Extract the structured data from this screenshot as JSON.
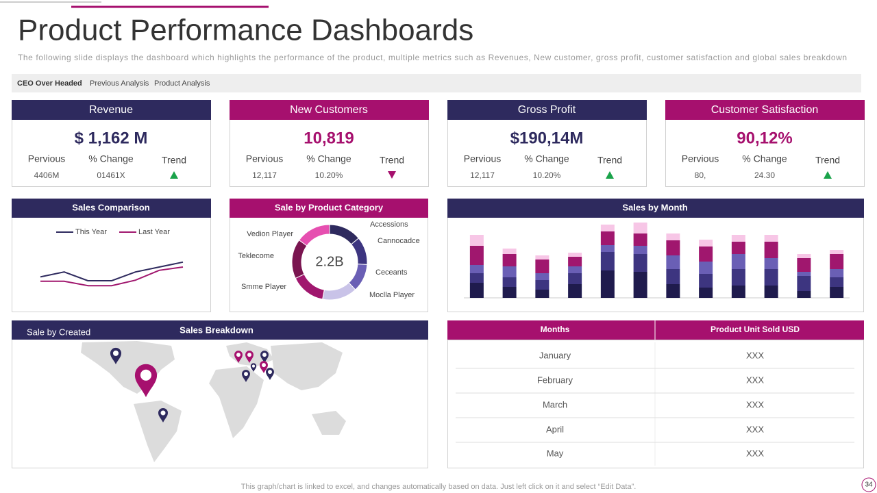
{
  "header": {
    "title": "Product Performance Dashboards",
    "subtitle": "The following slide displays the dashboard which highlights the  performance  of the product, multiple metrics such as Revenues,  New customer, gross profit, customer satisfaction and global sales breakdown"
  },
  "tabs": [
    "CEO Over Headed",
    "Previous Analysis",
    "Product Analysis"
  ],
  "kpis": [
    {
      "title": "Revenue",
      "color": "#2e2a5e",
      "value": "$ 1,162 M",
      "labels": [
        "Pervious",
        "% Change",
        "Trend"
      ],
      "previous": "4406M",
      "change": "01461X",
      "trend": "up"
    },
    {
      "title": "New Customers",
      "color": "#a6106e",
      "value": "10,819",
      "labels": [
        "Pervious",
        "% Change",
        "Trend"
      ],
      "previous": "12,117",
      "change": "10.20%",
      "trend": "down"
    },
    {
      "title": "Gross  Profit",
      "color": "#2e2a5e",
      "value": "$190,14M",
      "labels": [
        "Pervious",
        "% Change",
        "Trend"
      ],
      "previous": "12,117",
      "change": "10.20%",
      "trend": "up"
    },
    {
      "title": "Customer Satisfaction",
      "color": "#a6106e",
      "value": "90,12%",
      "labels": [
        "Pervious",
        "% Change",
        "Trend"
      ],
      "previous": "80,",
      "change": "24.30",
      "trend": "up"
    }
  ],
  "sales_comparison": {
    "type": "line",
    "title": "Sales Comparison",
    "ylim": [
      0,
      10
    ],
    "series": [
      {
        "name": "This Year",
        "color": "#2e2a5e",
        "values": [
          3.2,
          4.1,
          2.5,
          2.5,
          4.1,
          5.0,
          5.9
        ]
      },
      {
        "name": "Last Year",
        "color": "#a0176e",
        "values": [
          2.4,
          2.4,
          1.6,
          1.6,
          2.6,
          4.4,
          5.0
        ]
      }
    ]
  },
  "product_category": {
    "type": "pie",
    "title": "Sale by Product Category",
    "center_label": "2.2B",
    "categories": [
      "Accessions",
      "Cannocadce",
      "Ceceants",
      "Moclla Player",
      "Smme Player",
      "Teklecome",
      "Vedion Player"
    ],
    "values": [
      14,
      12,
      12,
      15,
      15,
      17,
      15
    ],
    "colors": [
      "#2e2a5e",
      "#3d3580",
      "#6a5fb5",
      "#c9c3e8",
      "#a0176e",
      "#7a1550",
      "#e64fb0"
    ]
  },
  "sales_by_month": {
    "type": "bar",
    "title": "Sales by Month",
    "ylim": [
      0,
      110
    ],
    "series": [
      {
        "color": "#1f1b4d",
        "values": [
          22,
          16,
          12,
          20,
          40,
          38,
          20,
          15,
          18,
          18,
          10,
          16
        ]
      },
      {
        "color": "#3d3580",
        "values": [
          14,
          14,
          14,
          16,
          27,
          26,
          22,
          20,
          24,
          24,
          22,
          14
        ]
      },
      {
        "color": "#6a5fb5",
        "values": [
          12,
          16,
          10,
          10,
          10,
          12,
          20,
          18,
          22,
          16,
          6,
          12
        ]
      },
      {
        "color": "#a0176e",
        "values": [
          28,
          18,
          20,
          14,
          20,
          18,
          22,
          22,
          18,
          24,
          20,
          22
        ]
      },
      {
        "color": "#f7c6e6",
        "values": [
          16,
          8,
          6,
          6,
          10,
          16,
          10,
          10,
          10,
          10,
          6,
          6
        ]
      }
    ]
  },
  "sales_breakdown": {
    "label": "Sale by Created",
    "title": "Sales Breakdown"
  },
  "table": {
    "columns": [
      "Months",
      "Product Unit Sold USD"
    ],
    "rows": [
      [
        "January",
        "XXX"
      ],
      [
        "February",
        "XXX"
      ],
      [
        "March",
        "XXX"
      ],
      [
        "April",
        "XXX"
      ],
      [
        "May",
        "XXX"
      ]
    ]
  },
  "footer": "This graph/chart is linked to excel, and changes automatically based on data. Just left click on it and select “Edit Data”.",
  "page_number": "34"
}
